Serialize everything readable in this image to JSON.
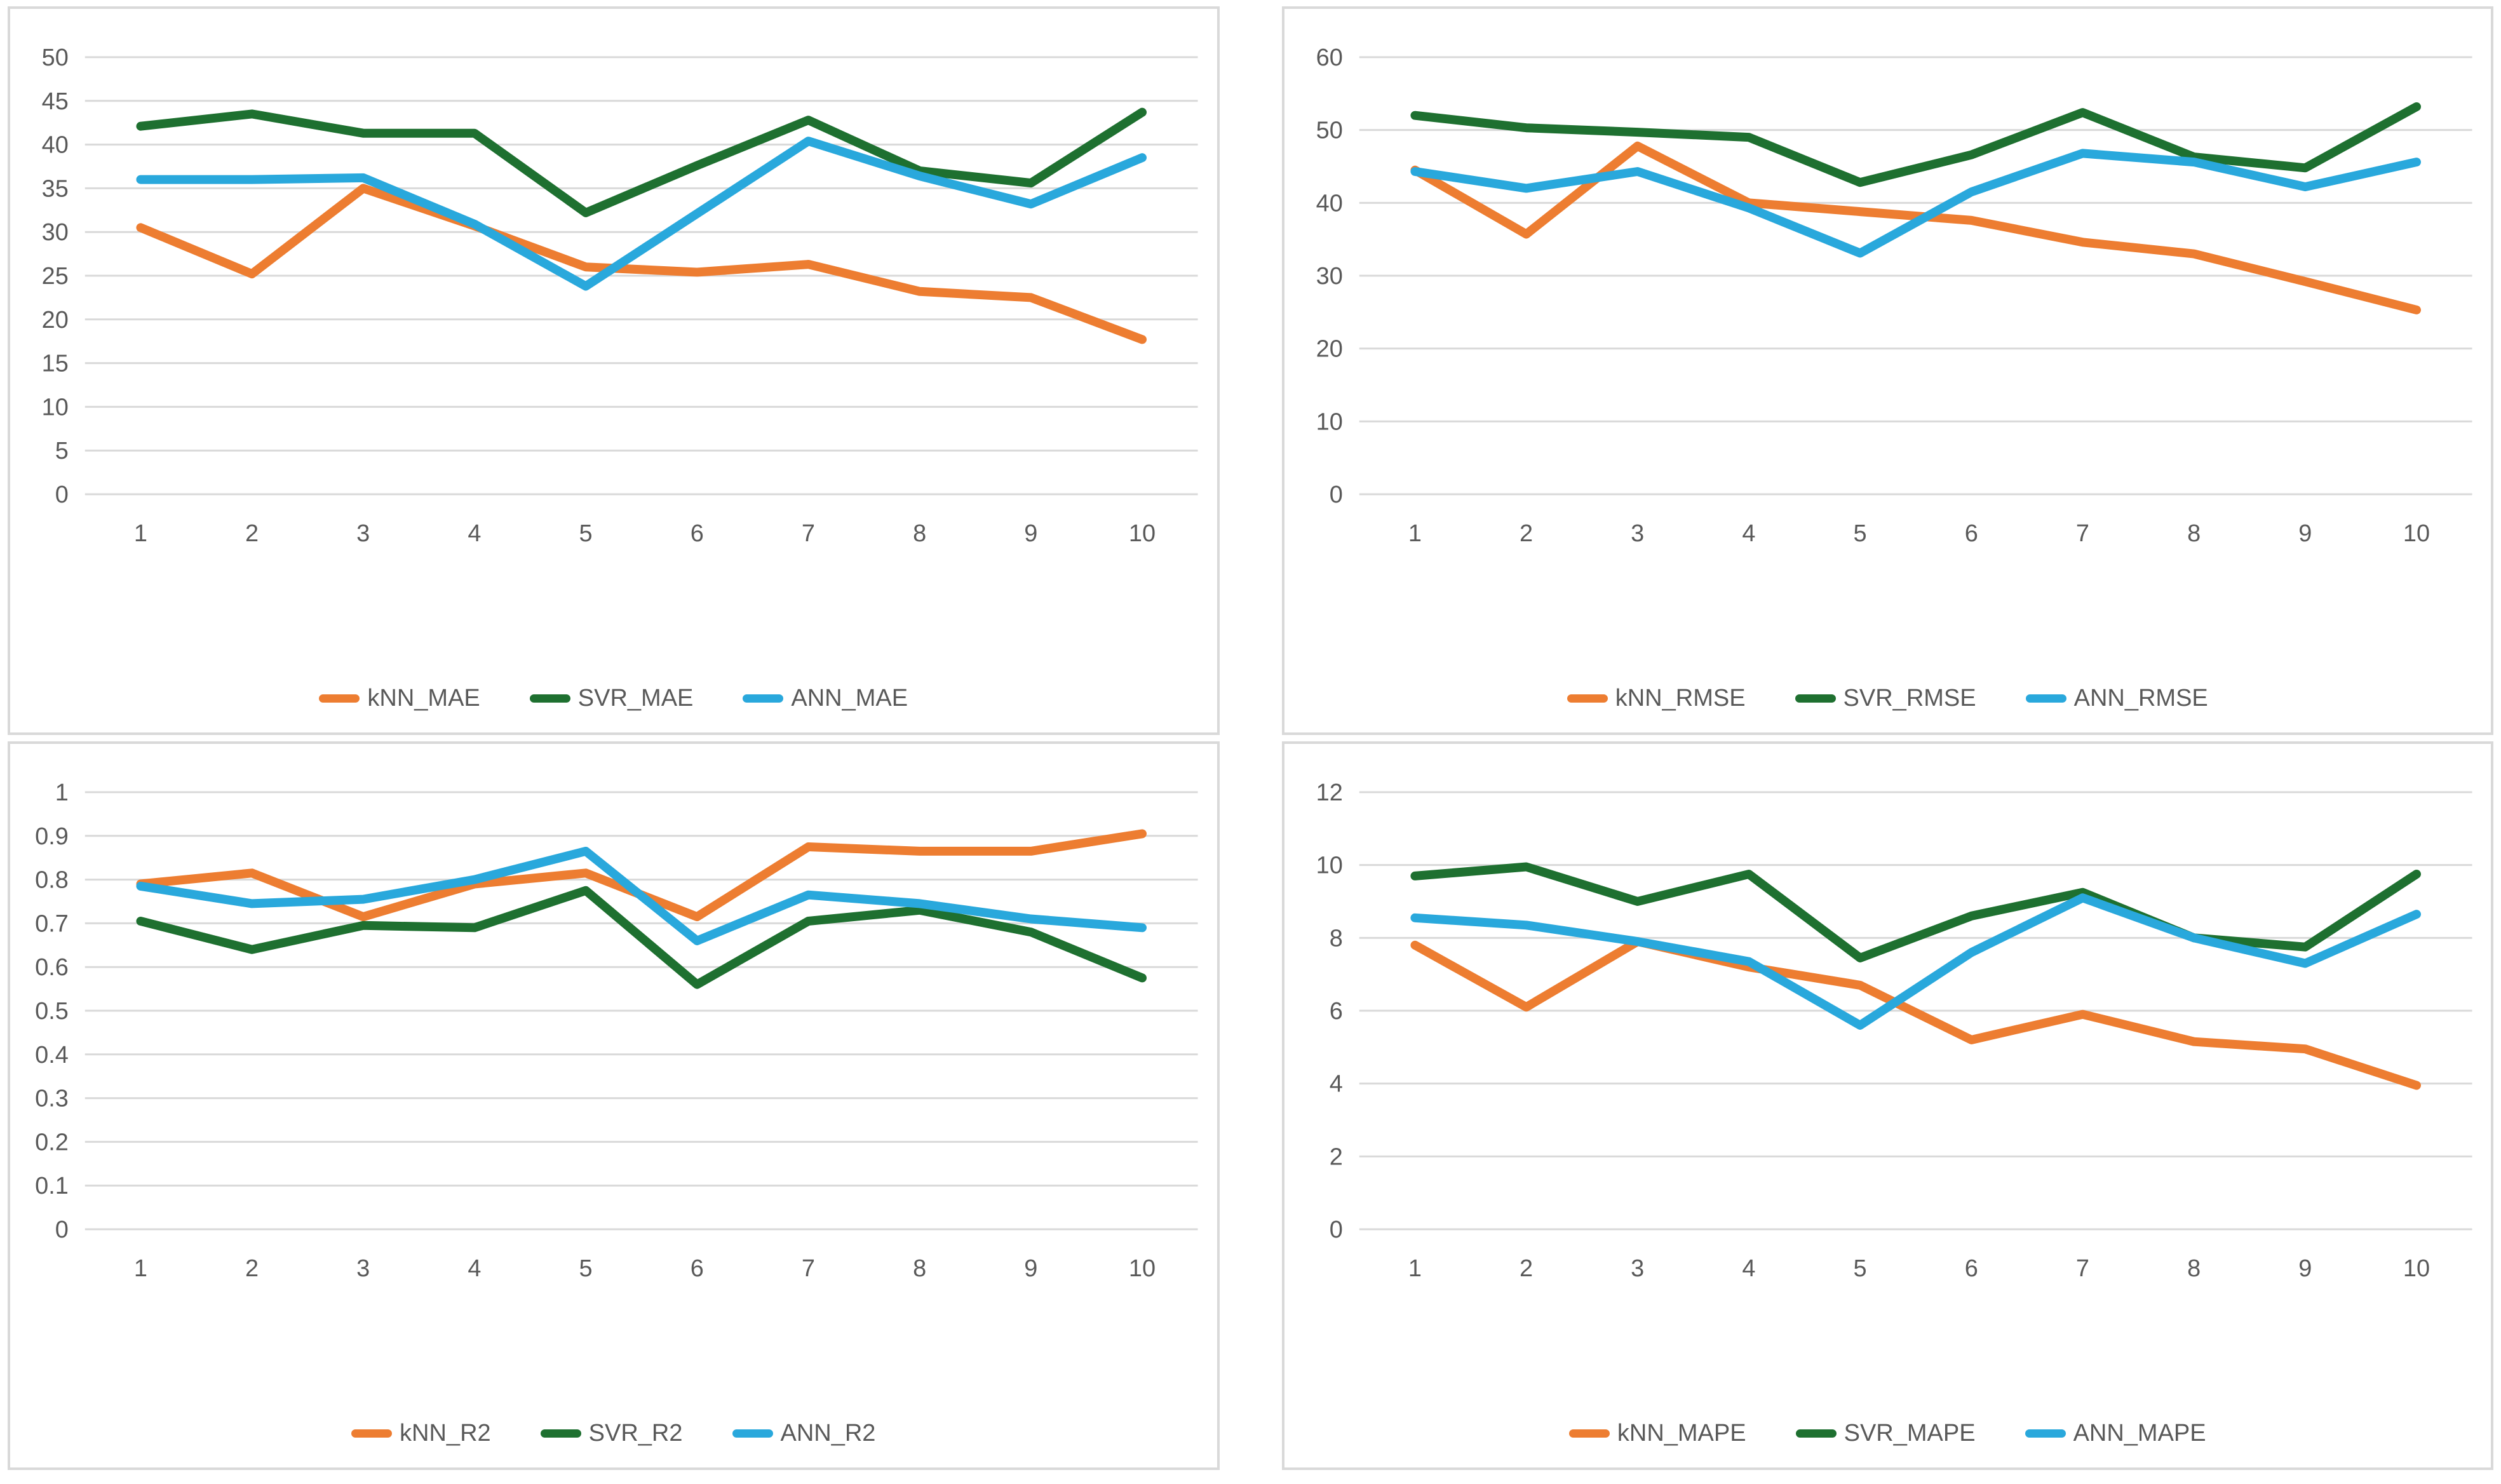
{
  "page": {
    "background": "#FFFFFF",
    "panel_border_color": "#D9D9D9"
  },
  "colors": {
    "kNN": "#ED7D31",
    "SVR": "#1E7030",
    "ANN": "#29A8DC",
    "gridline": "#D9D9D9",
    "axis_text": "#595959"
  },
  "chart_data": [
    {
      "type": "line",
      "title": "",
      "xlabel": "",
      "ylabel": "",
      "grid": true,
      "legend_position": "bottom",
      "x_categories": [
        "1",
        "2",
        "3",
        "4",
        "5",
        "6",
        "7",
        "8",
        "9",
        "10"
      ],
      "ylim": [
        0,
        50
      ],
      "ytick_labels": [
        "0",
        "5",
        "10",
        "15",
        "20",
        "25",
        "30",
        "35",
        "40",
        "45",
        "50"
      ],
      "series": [
        {
          "name": "kNN_MAE",
          "color": "kNN",
          "values": [
            30.5,
            25.2,
            35.0,
            30.7,
            26.0,
            25.4,
            26.3,
            23.2,
            22.5,
            17.7
          ]
        },
        {
          "name": "SVR_MAE",
          "color": "SVR",
          "values": [
            42.1,
            43.5,
            41.3,
            41.3,
            32.2,
            37.6,
            42.8,
            37.0,
            35.6,
            43.7
          ]
        },
        {
          "name": "ANN_MAE",
          "color": "ANN",
          "values": [
            36.0,
            36.0,
            36.2,
            30.9,
            23.8,
            32.1,
            40.4,
            36.4,
            33.2,
            38.5
          ]
        }
      ]
    },
    {
      "type": "line",
      "title": "",
      "xlabel": "",
      "ylabel": "",
      "grid": true,
      "legend_position": "bottom",
      "x_categories": [
        "1",
        "2",
        "3",
        "4",
        "5",
        "6",
        "7",
        "8",
        "9",
        "10"
      ],
      "ylim": [
        0,
        60
      ],
      "ytick_labels": [
        "0",
        "10",
        "20",
        "30",
        "40",
        "50",
        "60"
      ],
      "series": [
        {
          "name": "kNN_RMSE",
          "color": "kNN",
          "values": [
            44.5,
            35.7,
            47.8,
            40.0,
            38.8,
            37.6,
            34.6,
            33.0,
            29.2,
            25.3
          ]
        },
        {
          "name": "SVR_RMSE",
          "color": "SVR",
          "values": [
            52.0,
            50.3,
            49.7,
            49.0,
            42.8,
            46.6,
            52.4,
            46.3,
            44.8,
            53.2
          ]
        },
        {
          "name": "ANN_RMSE",
          "color": "ANN",
          "values": [
            44.3,
            42.0,
            44.3,
            39.3,
            33.1,
            41.5,
            46.8,
            45.6,
            42.2,
            45.6
          ]
        }
      ]
    },
    {
      "type": "line",
      "title": "",
      "xlabel": "",
      "ylabel": "",
      "grid": true,
      "legend_position": "bottom",
      "x_categories": [
        "1",
        "2",
        "3",
        "4",
        "5",
        "6",
        "7",
        "8",
        "9",
        "10"
      ],
      "ylim": [
        0,
        1
      ],
      "ytick_labels": [
        "0",
        "0.1",
        "0.2",
        "0.3",
        "0.4",
        "0.5",
        "0.6",
        "0.7",
        "0.8",
        "0.9",
        "1"
      ],
      "series": [
        {
          "name": "kNN_R2",
          "color": "kNN",
          "values": [
            0.79,
            0.815,
            0.715,
            0.79,
            0.815,
            0.715,
            0.875,
            0.865,
            0.865,
            0.905
          ]
        },
        {
          "name": "SVR_R2",
          "color": "SVR",
          "values": [
            0.705,
            0.64,
            0.695,
            0.69,
            0.775,
            0.56,
            0.705,
            0.73,
            0.68,
            0.575
          ]
        },
        {
          "name": "ANN_R2",
          "color": "ANN",
          "values": [
            0.785,
            0.745,
            0.755,
            0.8,
            0.865,
            0.66,
            0.765,
            0.745,
            0.71,
            0.69
          ]
        }
      ]
    },
    {
      "type": "line",
      "title": "",
      "xlabel": "",
      "ylabel": "",
      "grid": true,
      "legend_position": "bottom",
      "x_categories": [
        "1",
        "2",
        "3",
        "4",
        "5",
        "6",
        "7",
        "8",
        "9",
        "10"
      ],
      "ylim": [
        0,
        12
      ],
      "ytick_labels": [
        "0",
        "2",
        "4",
        "6",
        "8",
        "10",
        "12"
      ],
      "series": [
        {
          "name": "kNN_MAPE",
          "color": "kNN",
          "values": [
            7.8,
            6.1,
            7.9,
            7.2,
            6.7,
            5.2,
            5.9,
            5.15,
            4.95,
            3.95
          ]
        },
        {
          "name": "SVR_MAPE",
          "color": "SVR",
          "values": [
            9.7,
            9.95,
            9.0,
            9.75,
            7.45,
            8.6,
            9.25,
            8.0,
            7.75,
            9.75
          ]
        },
        {
          "name": "ANN_MAPE",
          "color": "ANN",
          "values": [
            8.55,
            8.35,
            7.9,
            7.35,
            5.6,
            7.6,
            9.1,
            8.0,
            7.3,
            8.65
          ]
        }
      ]
    }
  ]
}
